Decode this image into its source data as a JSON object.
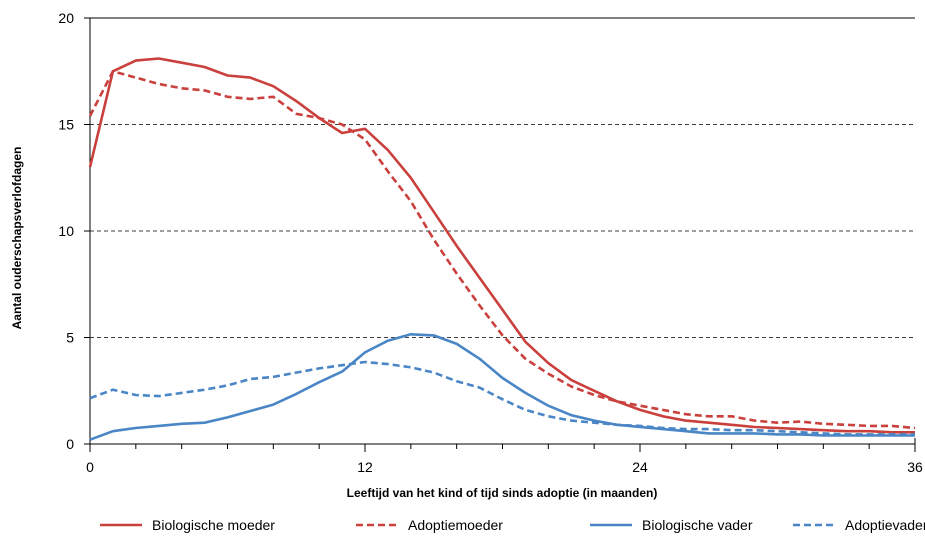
{
  "chart_data": {
    "type": "line",
    "xlabel": "Leeftijd van het kind of tijd sinds adoptie (in maanden)",
    "ylabel": "Aantal ouderschapsverlofdagen",
    "xlim": [
      0,
      36
    ],
    "ylim": [
      0,
      20
    ],
    "x_ticks": [
      0,
      12,
      24,
      36
    ],
    "y_ticks": [
      0,
      5,
      10,
      15,
      20
    ],
    "gridlines": "horizontal dashed at 5, 10, 15",
    "legend_position": "bottom",
    "series": [
      {
        "name": "Biologische moeder",
        "color": "#c9403d",
        "style": "solid",
        "x": [
          0,
          1,
          2,
          3,
          4,
          5,
          6,
          7,
          8,
          9,
          10,
          11,
          12,
          13,
          14,
          15,
          16,
          17,
          18,
          19,
          20,
          21,
          22,
          23,
          24,
          25,
          26,
          27,
          28,
          29,
          30,
          31,
          32,
          33,
          34,
          35,
          36
        ],
        "values": [
          13.0,
          17.5,
          18.0,
          18.1,
          17.9,
          17.7,
          17.3,
          17.2,
          16.8,
          16.1,
          15.3,
          14.6,
          14.8,
          13.8,
          12.5,
          10.9,
          9.3,
          7.8,
          6.3,
          4.8,
          3.8,
          3.0,
          2.5,
          2.0,
          1.6,
          1.3,
          1.1,
          1.0,
          0.9,
          0.8,
          0.75,
          0.7,
          0.65,
          0.6,
          0.6,
          0.55,
          0.55
        ]
      },
      {
        "name": "Adoptiemoeder",
        "color": "#c9403d",
        "style": "dashed",
        "x": [
          0,
          1,
          2,
          3,
          4,
          5,
          6,
          7,
          8,
          9,
          10,
          11,
          12,
          13,
          14,
          15,
          16,
          17,
          18,
          19,
          20,
          21,
          22,
          23,
          24,
          25,
          26,
          27,
          28,
          29,
          30,
          31,
          32,
          33,
          34,
          35,
          36
        ],
        "values": [
          15.4,
          17.5,
          17.2,
          16.9,
          16.7,
          16.6,
          16.3,
          16.2,
          16.3,
          15.5,
          15.3,
          15.0,
          14.3,
          12.8,
          11.4,
          9.6,
          8.0,
          6.5,
          5.1,
          4.0,
          3.3,
          2.7,
          2.3,
          2.0,
          1.8,
          1.6,
          1.4,
          1.3,
          1.3,
          1.1,
          1.0,
          1.05,
          0.95,
          0.9,
          0.85,
          0.85,
          0.75
        ]
      },
      {
        "name": "Biologische vader",
        "color": "#4a86c5",
        "style": "solid",
        "x": [
          0,
          1,
          2,
          3,
          4,
          5,
          6,
          7,
          8,
          9,
          10,
          11,
          12,
          13,
          14,
          15,
          16,
          17,
          18,
          19,
          20,
          21,
          22,
          23,
          24,
          25,
          26,
          27,
          28,
          29,
          30,
          31,
          32,
          33,
          34,
          35,
          36
        ],
        "values": [
          0.2,
          0.6,
          0.75,
          0.85,
          0.95,
          1.0,
          1.25,
          1.55,
          1.85,
          2.35,
          2.9,
          3.4,
          4.3,
          4.85,
          5.15,
          5.1,
          4.7,
          4.0,
          3.1,
          2.4,
          1.8,
          1.35,
          1.1,
          0.9,
          0.8,
          0.7,
          0.6,
          0.5,
          0.5,
          0.5,
          0.45,
          0.45,
          0.4,
          0.4,
          0.4,
          0.4,
          0.4
        ]
      },
      {
        "name": "Adoptievader",
        "color": "#4a86c5",
        "style": "dashed",
        "x": [
          0,
          1,
          2,
          3,
          4,
          5,
          6,
          7,
          8,
          9,
          10,
          11,
          12,
          13,
          14,
          15,
          16,
          17,
          18,
          19,
          20,
          21,
          22,
          23,
          24,
          25,
          26,
          27,
          28,
          29,
          30,
          31,
          32,
          33,
          34,
          35,
          36
        ],
        "values": [
          2.15,
          2.55,
          2.3,
          2.25,
          2.4,
          2.55,
          2.75,
          3.05,
          3.15,
          3.35,
          3.55,
          3.7,
          3.85,
          3.75,
          3.6,
          3.35,
          2.95,
          2.65,
          2.1,
          1.6,
          1.3,
          1.1,
          1.0,
          0.9,
          0.85,
          0.75,
          0.7,
          0.7,
          0.65,
          0.65,
          0.6,
          0.55,
          0.5,
          0.45,
          0.45,
          0.45,
          0.45
        ]
      }
    ]
  }
}
